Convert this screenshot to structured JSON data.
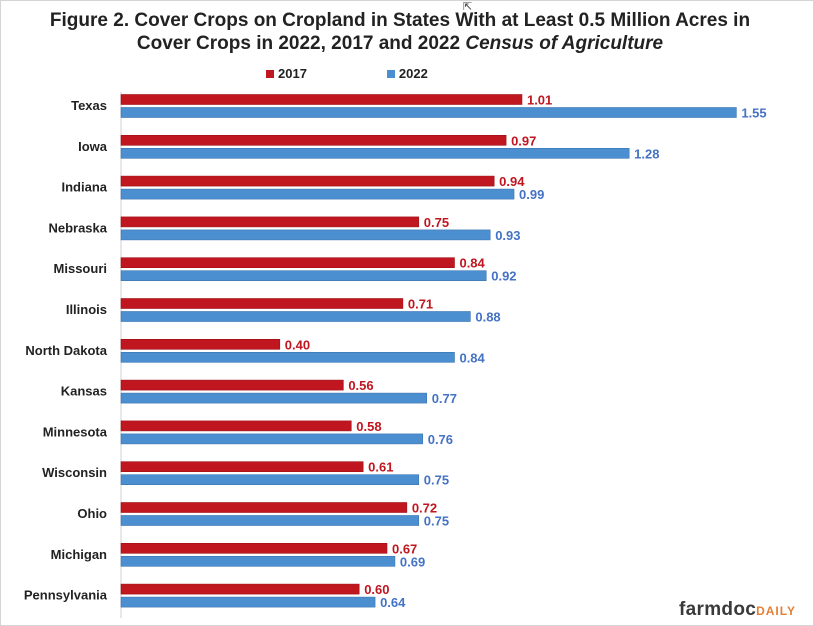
{
  "chart_data": {
    "type": "bar",
    "orientation": "horizontal",
    "title_line1": "Figure 2. Cover Crops on Cropland in States With at Least 0.5 Million Acres  in",
    "title_line2_a": "Cover Crops in 2022, 2017 and 2022 ",
    "title_line2_b": "Census of Agriculture",
    "categories": [
      "Texas",
      "Iowa",
      "Indiana",
      "Nebraska",
      "Missouri",
      "Illinois",
      "North Dakota",
      "Kansas",
      "Minnesota",
      "Wisconsin",
      "Ohio",
      "Michigan",
      "Pennsylvania"
    ],
    "series": [
      {
        "name": "2017",
        "color": "#c0161f",
        "values": [
          1.01,
          0.97,
          0.94,
          0.75,
          0.84,
          0.71,
          0.4,
          0.56,
          0.58,
          0.61,
          0.72,
          0.67,
          0.6
        ]
      },
      {
        "name": "2022",
        "color": "#4c8fd0",
        "values": [
          1.55,
          1.28,
          0.99,
          0.93,
          0.92,
          0.88,
          0.84,
          0.77,
          0.76,
          0.75,
          0.75,
          0.69,
          0.64
        ]
      }
    ],
    "value_label_colors": {
      "2017": "#c0161f",
      "2022": "#4472c4"
    },
    "xlim": [
      0,
      1.7
    ],
    "legend_position": "top"
  },
  "branding": {
    "main": "farmdoc",
    "suffix": "DAILY"
  }
}
